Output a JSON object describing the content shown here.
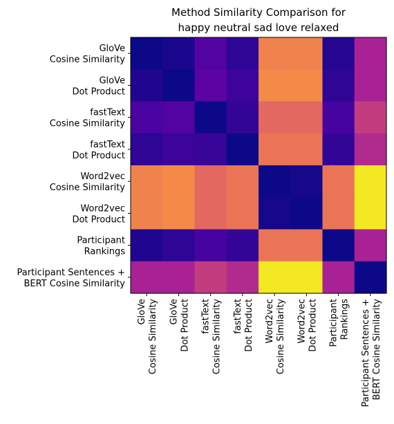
{
  "chart_data": {
    "type": "heatmap",
    "title": [
      "Method Similarity Comparison for",
      "happy neutral sad love relaxed"
    ],
    "xlabel": "",
    "ylabel": "",
    "colormap": "plasma",
    "value_range": [
      0,
      1
    ],
    "grid": false,
    "legend": "none",
    "labels": [
      [
        "GloVe",
        "Cosine Similarity"
      ],
      [
        "GloVe",
        "Dot Product"
      ],
      [
        "fastText",
        "Cosine Similarity"
      ],
      [
        "fastText",
        "Dot Product"
      ],
      [
        "Word2vec",
        "Cosine Similarity"
      ],
      [
        "Word2vec",
        "Dot Product"
      ],
      [
        "Participant",
        "Rankings"
      ],
      [
        "Participant Sentences +",
        "BERT Cosine Similarity"
      ]
    ],
    "matrix": [
      [
        0.0,
        0.03,
        0.15,
        0.07,
        0.7,
        0.7,
        0.05,
        0.38
      ],
      [
        0.04,
        0.0,
        0.17,
        0.1,
        0.72,
        0.72,
        0.07,
        0.38
      ],
      [
        0.13,
        0.15,
        0.0,
        0.08,
        0.62,
        0.62,
        0.12,
        0.47
      ],
      [
        0.07,
        0.1,
        0.09,
        0.0,
        0.66,
        0.66,
        0.08,
        0.41
      ],
      [
        0.7,
        0.72,
        0.62,
        0.66,
        0.0,
        0.02,
        0.66,
        0.96
      ],
      [
        0.7,
        0.72,
        0.62,
        0.66,
        0.02,
        0.0,
        0.66,
        0.96
      ],
      [
        0.04,
        0.07,
        0.12,
        0.08,
        0.66,
        0.66,
        0.0,
        0.38
      ],
      [
        0.38,
        0.38,
        0.47,
        0.41,
        0.96,
        0.96,
        0.38,
        0.0
      ]
    ]
  }
}
